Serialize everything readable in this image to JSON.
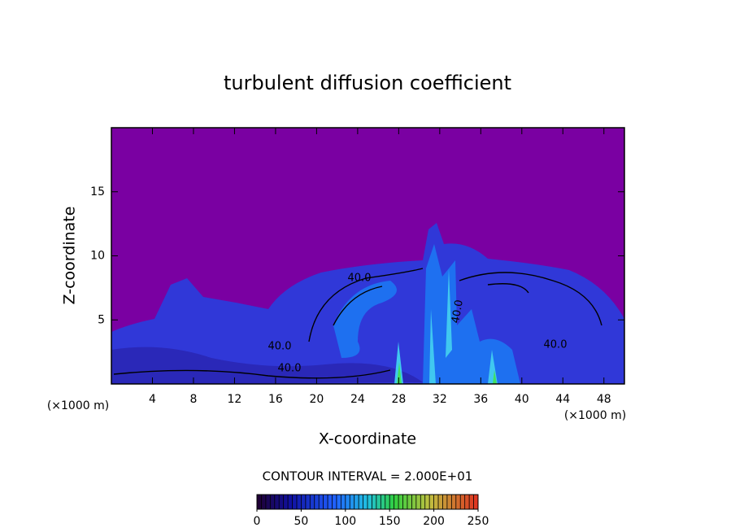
{
  "chart_data": {
    "type": "contour",
    "title": "turbulent diffusion coefficient",
    "xlabel": "X-coordinate",
    "ylabel": "Z-coordinate",
    "x_unit": "(×1000 m)",
    "xlim": [
      0,
      50
    ],
    "xticks": [
      4,
      8,
      12,
      16,
      20,
      24,
      28,
      32,
      36,
      40,
      44,
      48
    ],
    "ylim": [
      0,
      20
    ],
    "yticks": [
      5,
      10,
      15
    ],
    "background_color": "#7a00a2",
    "contour_labels": [
      "40.0",
      "40.0",
      "40.0",
      "40.0",
      "40.0"
    ],
    "contour_interval_label": "CONTOUR INTERVAL = 2.000E+01",
    "colorbar": {
      "lim": [
        0,
        250
      ],
      "ticks": [
        0,
        50,
        100,
        150,
        200,
        250
      ]
    }
  }
}
